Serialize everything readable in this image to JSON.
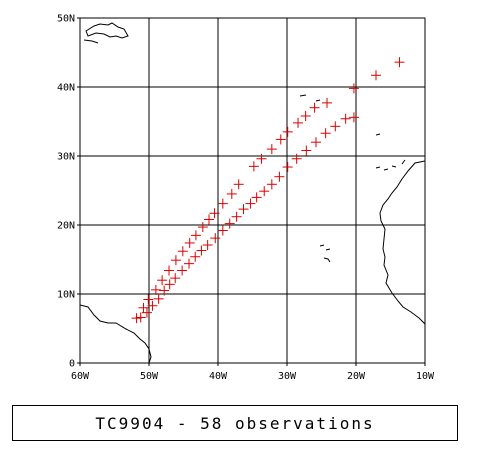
{
  "chart_data": {
    "type": "scatter",
    "title": "TC9904 - 58 observations",
    "xlim": [
      -60,
      -10
    ],
    "ylim": [
      0,
      50
    ],
    "x_ticks": [
      {
        "value": -60,
        "label": "60W"
      },
      {
        "value": -50,
        "label": "50W"
      },
      {
        "value": -40,
        "label": "40W"
      },
      {
        "value": -30,
        "label": "30W"
      },
      {
        "value": -20,
        "label": "20W"
      },
      {
        "value": -10,
        "label": "10W"
      }
    ],
    "y_ticks": [
      {
        "value": 0,
        "label": "0"
      },
      {
        "value": 10,
        "label": "10N"
      },
      {
        "value": 20,
        "label": "20N"
      },
      {
        "value": 30,
        "label": "30N"
      },
      {
        "value": 40,
        "label": "40N"
      },
      {
        "value": 50,
        "label": "50N"
      }
    ],
    "grid": true,
    "marker": "+",
    "marker_color": "#dd0000",
    "series": [
      {
        "points": [
          [
            -51.8,
            6.5
          ],
          [
            -50.8,
            8.0
          ],
          [
            -50.1,
            9.2
          ],
          [
            -49.0,
            10.6
          ],
          [
            -48.1,
            12.0
          ],
          [
            -47.1,
            13.4
          ],
          [
            -46.1,
            14.9
          ],
          [
            -45.1,
            16.2
          ],
          [
            -44.1,
            17.4
          ],
          [
            -43.2,
            18.5
          ],
          [
            -42.2,
            19.7
          ],
          [
            -41.3,
            20.8
          ],
          [
            -40.5,
            21.7
          ],
          [
            -39.3,
            23.1
          ],
          [
            -38.0,
            24.5
          ],
          [
            -37.0,
            25.9
          ],
          [
            -34.8,
            28.5
          ],
          [
            -33.7,
            29.6
          ],
          [
            -32.2,
            31.0
          ],
          [
            -30.9,
            32.4
          ],
          [
            -29.9,
            33.5
          ],
          [
            -28.4,
            34.8
          ],
          [
            -27.3,
            35.8
          ],
          [
            -26.0,
            37.0
          ],
          [
            -24.2,
            37.7
          ],
          [
            -20.3,
            39.8
          ],
          [
            -17.1,
            41.7
          ],
          [
            -13.7,
            43.6
          ]
        ]
      },
      {
        "points": [
          [
            -51.2,
            6.6
          ],
          [
            -50.3,
            7.3
          ],
          [
            -49.5,
            8.3
          ],
          [
            -48.6,
            9.3
          ],
          [
            -47.8,
            10.5
          ],
          [
            -47.0,
            11.4
          ],
          [
            -46.2,
            12.3
          ],
          [
            -45.2,
            13.4
          ],
          [
            -44.2,
            14.4
          ],
          [
            -43.3,
            15.4
          ],
          [
            -42.4,
            16.3
          ],
          [
            -41.5,
            17.1
          ],
          [
            -40.4,
            18.1
          ],
          [
            -39.3,
            19.2
          ],
          [
            -38.3,
            20.2
          ],
          [
            -37.3,
            21.2
          ],
          [
            -36.3,
            22.3
          ],
          [
            -35.3,
            23.1
          ],
          [
            -34.4,
            24.0
          ],
          [
            -33.3,
            24.9
          ],
          [
            -32.2,
            25.9
          ],
          [
            -31.1,
            27.0
          ],
          [
            -29.9,
            28.4
          ],
          [
            -28.6,
            29.6
          ],
          [
            -27.2,
            30.8
          ],
          [
            -25.8,
            32.0
          ],
          [
            -24.4,
            33.3
          ],
          [
            -23.0,
            34.3
          ],
          [
            -21.5,
            35.4
          ],
          [
            -20.3,
            35.6
          ]
        ]
      }
    ]
  }
}
